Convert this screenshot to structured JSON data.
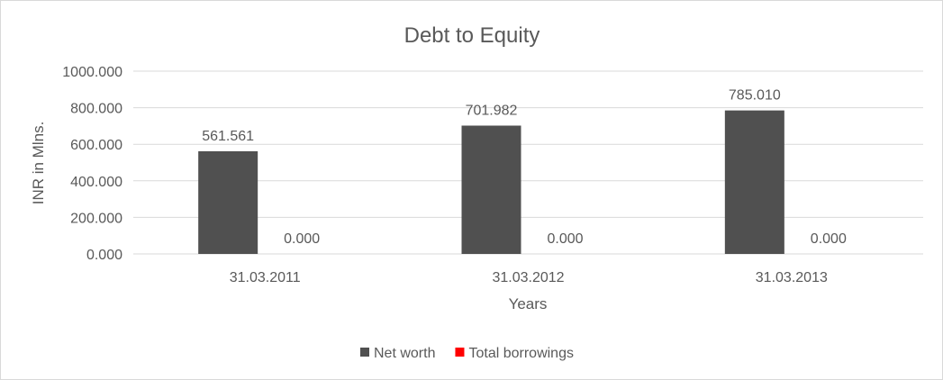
{
  "chart_data": {
    "type": "bar",
    "title": "Debt to Equity",
    "xlabel": "Years",
    "ylabel": "INR in Mlns.",
    "categories": [
      "31.03.2011",
      "31.03.2012",
      "31.03.2013"
    ],
    "series": [
      {
        "name": "Net worth",
        "values": [
          561.561,
          701.982,
          785.01
        ],
        "color": "#505050"
      },
      {
        "name": "Total borrowings",
        "values": [
          0.0,
          0.0,
          0.0
        ],
        "color": "#ff0000"
      }
    ],
    "ylim": [
      0,
      1000
    ],
    "yticks": [
      0,
      200,
      400,
      600,
      800,
      1000
    ],
    "grid": true,
    "legend": "bottom",
    "label_decimals": 3
  }
}
